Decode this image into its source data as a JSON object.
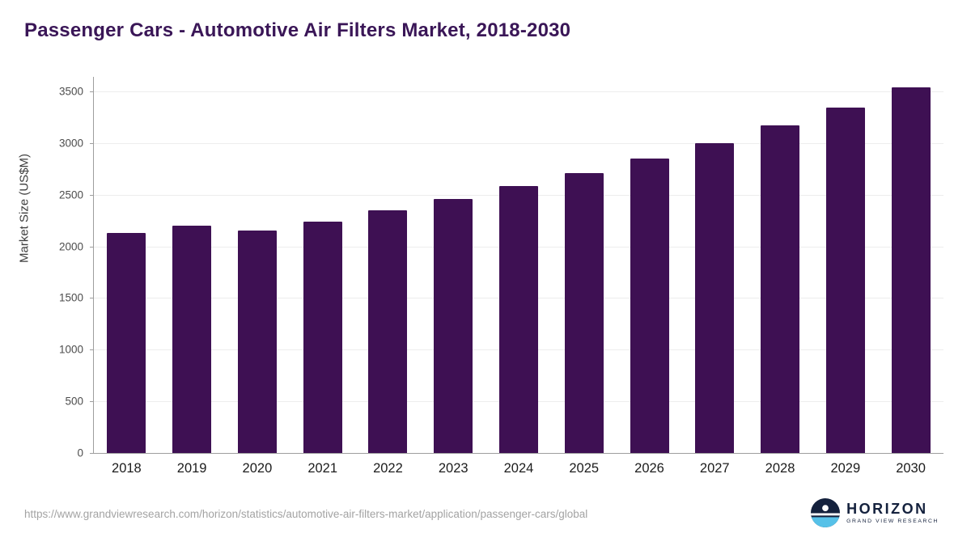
{
  "header": {
    "title": "Passenger Cars - Automotive Air Filters Market, 2018-2030"
  },
  "chart_data": {
    "type": "bar",
    "title": "Passenger Cars - Automotive Air Filters Market, 2018-2030",
    "categories": [
      "2018",
      "2019",
      "2020",
      "2021",
      "2022",
      "2023",
      "2024",
      "2025",
      "2026",
      "2027",
      "2028",
      "2029",
      "2030"
    ],
    "values": [
      2130,
      2200,
      2150,
      2240,
      2350,
      2460,
      2580,
      2710,
      2850,
      3000,
      3170,
      3340,
      3540
    ],
    "xlabel": "",
    "ylabel": "Market Size (US$M)",
    "ylim": [
      0,
      3640
    ],
    "yticks": [
      0,
      500,
      1000,
      1500,
      2000,
      2500,
      3000,
      3500
    ],
    "grid": true,
    "legend": "none",
    "bar_color": "#3e1053",
    "axis_color": "#9e9e9e"
  },
  "footer": {
    "source_url": "https://www.grandviewresearch.com/horizon/statistics/automotive-air-filters-market/application/passenger-cars/global",
    "logo": {
      "name": "HORIZON",
      "subtitle": "GRAND VIEW RESEARCH"
    }
  },
  "colors": {
    "title": "#3a1657",
    "navy": "#14213d",
    "light_blue": "#56c1e8"
  }
}
